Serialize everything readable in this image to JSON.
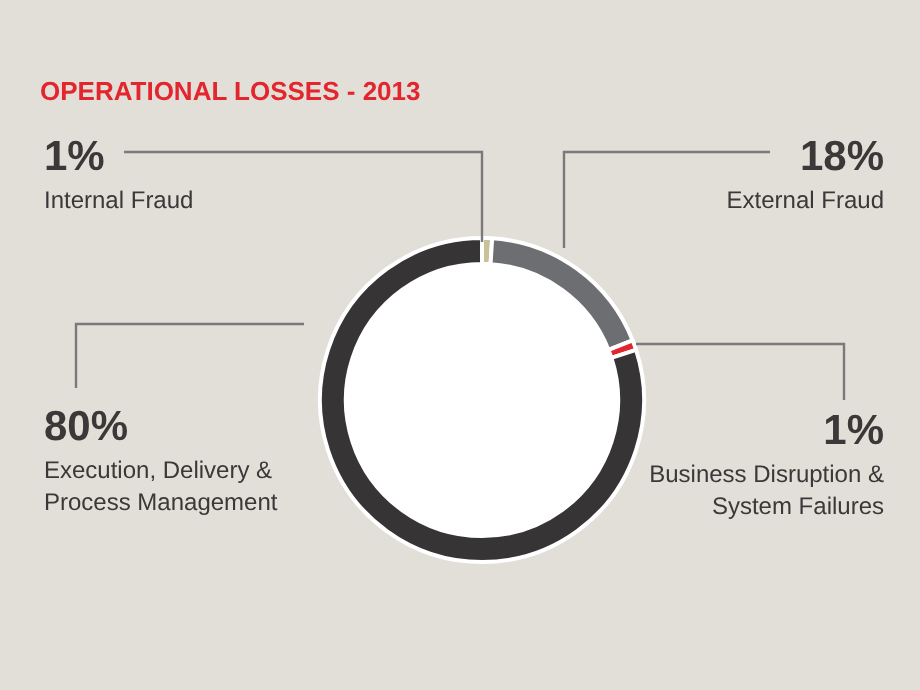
{
  "chart_data": {
    "type": "donut",
    "title": "OPERATIONAL LOSSES - 2013",
    "categories": [
      "Internal Fraud",
      "External Fraud",
      "Business Disruption & System Failures",
      "Execution, Delivery & Process Management"
    ],
    "values": [
      1,
      18,
      1,
      80
    ],
    "colors": [
      "#c9c19a",
      "#6d6e71",
      "#e3262e",
      "#363435"
    ],
    "value_labels": [
      "1%",
      "18%",
      "1%",
      "80%"
    ],
    "legend": false
  }
}
